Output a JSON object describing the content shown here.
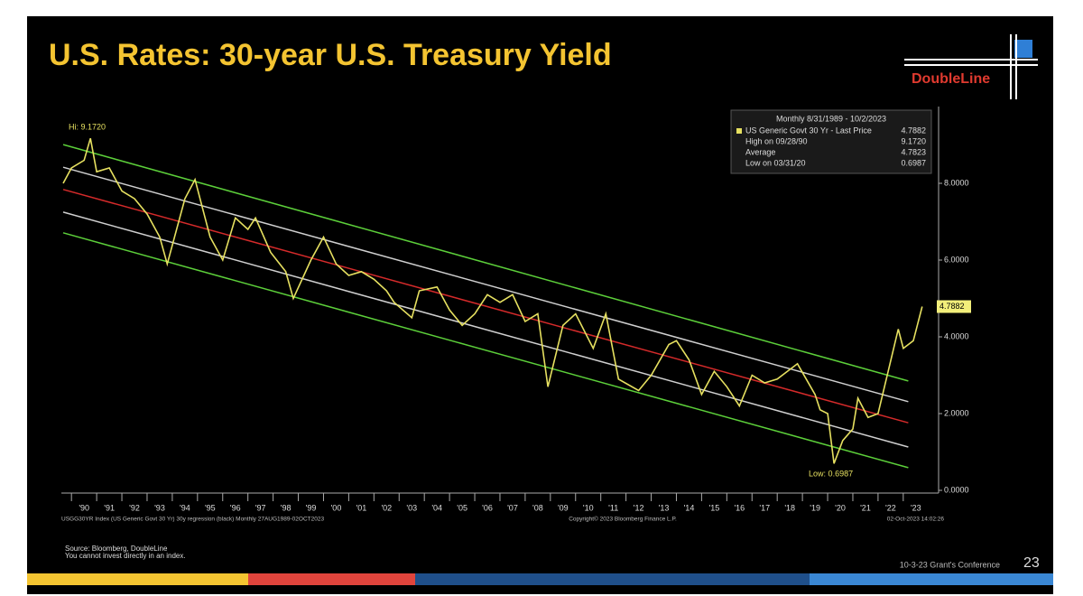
{
  "header": {
    "title": "U.S. Rates: 30-year U.S. Treasury Yield",
    "logo": "DoubleLine"
  },
  "chart_data": {
    "type": "line",
    "xlim": [
      1989.67,
      2023.9
    ],
    "ylim": [
      0,
      10
    ],
    "yticks": [
      {
        "value": 0,
        "label": "0.0000"
      },
      {
        "value": 2,
        "label": "2.0000"
      },
      {
        "value": 4,
        "label": "4.0000"
      },
      {
        "value": 6,
        "label": "6.0000"
      },
      {
        "value": 8,
        "label": "8.0000"
      }
    ],
    "xticks": [
      {
        "value": 1990.5,
        "label": "'90"
      },
      {
        "value": 1991.5,
        "label": "'91"
      },
      {
        "value": 1992.5,
        "label": "'92"
      },
      {
        "value": 1993.5,
        "label": "'93"
      },
      {
        "value": 1994.5,
        "label": "'94"
      },
      {
        "value": 1995.5,
        "label": "'95"
      },
      {
        "value": 1996.5,
        "label": "'96"
      },
      {
        "value": 1997.5,
        "label": "'97"
      },
      {
        "value": 1998.5,
        "label": "'98"
      },
      {
        "value": 1999.5,
        "label": "'99"
      },
      {
        "value": 2000.5,
        "label": "'00"
      },
      {
        "value": 2001.5,
        "label": "'01"
      },
      {
        "value": 2002.5,
        "label": "'02"
      },
      {
        "value": 2003.5,
        "label": "'03"
      },
      {
        "value": 2004.5,
        "label": "'04"
      },
      {
        "value": 2005.5,
        "label": "'05"
      },
      {
        "value": 2006.5,
        "label": "'06"
      },
      {
        "value": 2007.5,
        "label": "'07"
      },
      {
        "value": 2008.5,
        "label": "'08"
      },
      {
        "value": 2009.5,
        "label": "'09"
      },
      {
        "value": 2010.5,
        "label": "'10"
      },
      {
        "value": 2011.5,
        "label": "'11"
      },
      {
        "value": 2012.5,
        "label": "'12"
      },
      {
        "value": 2013.5,
        "label": "'13"
      },
      {
        "value": 2014.5,
        "label": "'14"
      },
      {
        "value": 2015.5,
        "label": "'15"
      },
      {
        "value": 2016.5,
        "label": "'16"
      },
      {
        "value": 2017.5,
        "label": "'17"
      },
      {
        "value": 2018.5,
        "label": "'18"
      },
      {
        "value": 2019.5,
        "label": "'19"
      },
      {
        "value": 2020.5,
        "label": "'20"
      },
      {
        "value": 2021.5,
        "label": "'21"
      },
      {
        "value": 2022.5,
        "label": "'22"
      },
      {
        "value": 2023.5,
        "label": "'23"
      }
    ],
    "series": [
      {
        "name": "US Generic Govt 30 Yr - Last Price",
        "color": "#e6e060",
        "x": [
          1989.67,
          1990.0,
          1990.5,
          1990.75,
          1991.0,
          1991.5,
          1992.0,
          1992.5,
          1993.0,
          1993.5,
          1993.8,
          1994.5,
          1994.9,
          1995.5,
          1996.0,
          1996.5,
          1997.0,
          1997.3,
          1997.9,
          1998.5,
          1998.8,
          1999.5,
          2000.0,
          2000.5,
          2001.0,
          2001.5,
          2002.0,
          2002.5,
          2002.8,
          2003.5,
          2003.8,
          2004.5,
          2005.0,
          2005.5,
          2006.0,
          2006.5,
          2007.0,
          2007.5,
          2008.0,
          2008.5,
          2008.9,
          2009.5,
          2010.0,
          2010.7,
          2011.2,
          2011.7,
          2012.5,
          2013.0,
          2013.7,
          2014.0,
          2014.5,
          2015.0,
          2015.5,
          2016.0,
          2016.5,
          2017.0,
          2017.5,
          2018.0,
          2018.8,
          2019.5,
          2019.7,
          2020.0,
          2020.25,
          2020.6,
          2021.0,
          2021.2,
          2021.6,
          2022.0,
          2022.4,
          2022.8,
          2023.0,
          2023.4,
          2023.75
        ],
        "values": [
          8.0,
          8.4,
          8.6,
          9.172,
          8.3,
          8.4,
          7.8,
          7.6,
          7.2,
          6.6,
          5.9,
          7.6,
          8.1,
          6.6,
          6.0,
          7.1,
          6.8,
          7.1,
          6.2,
          5.7,
          5.0,
          6.0,
          6.6,
          5.9,
          5.6,
          5.7,
          5.5,
          5.2,
          4.9,
          4.5,
          5.2,
          5.3,
          4.7,
          4.3,
          4.6,
          5.1,
          4.9,
          5.1,
          4.4,
          4.6,
          2.7,
          4.3,
          4.6,
          3.7,
          4.6,
          2.9,
          2.6,
          3.0,
          3.8,
          3.9,
          3.4,
          2.5,
          3.1,
          2.7,
          2.2,
          3.0,
          2.8,
          2.9,
          3.3,
          2.5,
          2.1,
          2.0,
          0.6987,
          1.3,
          1.6,
          2.4,
          1.9,
          2.0,
          3.1,
          4.2,
          3.7,
          3.9,
          4.7882
        ]
      }
    ],
    "channel_lines": [
      {
        "color": "#5ccf3a",
        "x": [
          1989.67,
          2023.2
        ],
        "values": [
          9.01,
          2.85
        ]
      },
      {
        "color": "#cfcfcf",
        "x": [
          1989.67,
          2023.2
        ],
        "values": [
          8.42,
          2.31
        ]
      },
      {
        "color": "#d42a2a",
        "x": [
          1989.67,
          2023.2
        ],
        "values": [
          7.84,
          1.76
        ]
      },
      {
        "color": "#cfcfcf",
        "x": [
          1989.67,
          2023.2
        ],
        "values": [
          7.25,
          1.13
        ]
      },
      {
        "color": "#5ccf3a",
        "x": [
          1989.67,
          2023.2
        ],
        "values": [
          6.71,
          0.59
        ]
      }
    ],
    "annotations": {
      "high": "Hi: 9.1720",
      "low": "Low: 0.6987",
      "last": "4.7882"
    },
    "legend_box": {
      "title": "Monthly 8/31/1989 - 10/2/2023",
      "rows": [
        [
          "US Generic Govt 30 Yr - Last Price",
          "4.7882"
        ],
        [
          "High on 09/28/90",
          "9.1720"
        ],
        [
          "Average",
          "4.7823"
        ],
        [
          "Low on 03/31/20",
          "0.6987"
        ]
      ]
    },
    "footer_left": "USGG30YR Index (US Generic Govt 30 Yr) 30y regression (black) Monthly 27AUG1989-02OCT2023",
    "footer_center": "Copyright© 2023 Bloomberg Finance L.P.",
    "footer_right": "02-Oct-2023 14:02:26"
  },
  "footer": {
    "source": "Source: Bloomberg, DoubleLine",
    "disclaimer": "You cannot invest directly in an index.",
    "event": "10-3-23 Grant's Conference",
    "page": "23"
  }
}
